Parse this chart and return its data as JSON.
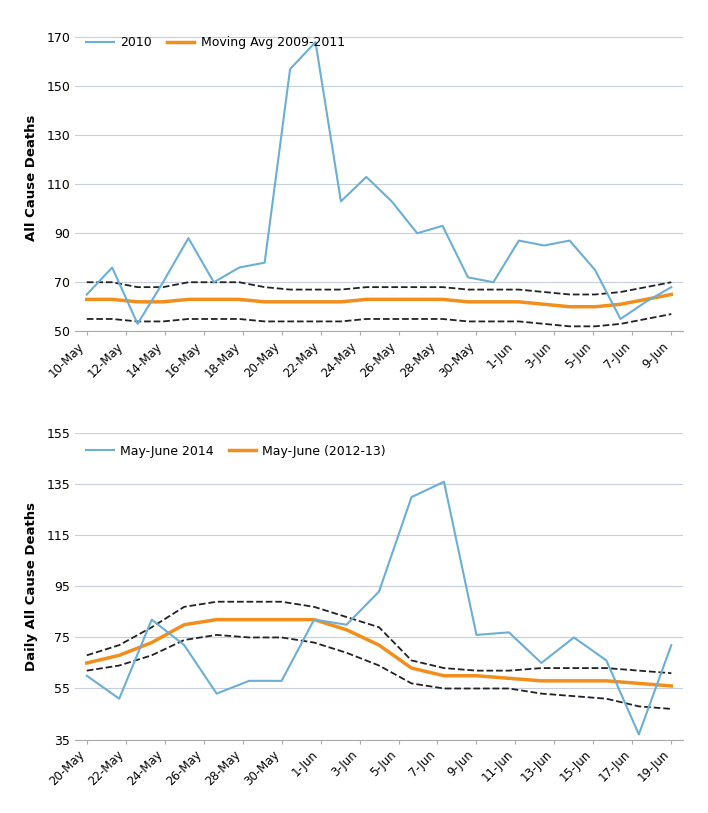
{
  "chart1": {
    "ylabel": "All Cause Deaths",
    "xlabels": [
      "10-May",
      "12-May",
      "14-May",
      "16-May",
      "18-May",
      "20-May",
      "22-May",
      "24-May",
      "26-May",
      "28-May",
      "30-May",
      "1-Jun",
      "3-Jun",
      "5-Jun",
      "7-Jun",
      "9-Jun"
    ],
    "blue_line": [
      65,
      76,
      53,
      70,
      88,
      70,
      76,
      78,
      157,
      168,
      103,
      113,
      103,
      90,
      93,
      72,
      70,
      87,
      85,
      87,
      75,
      55,
      62,
      68
    ],
    "orange_line": [
      63,
      63,
      62,
      62,
      63,
      63,
      63,
      62,
      62,
      62,
      62,
      63,
      63,
      63,
      63,
      62,
      62,
      62,
      61,
      60,
      60,
      61,
      63,
      65
    ],
    "upper_ci": [
      70,
      70,
      68,
      68,
      70,
      70,
      70,
      68,
      67,
      67,
      67,
      68,
      68,
      68,
      68,
      67,
      67,
      67,
      66,
      65,
      65,
      66,
      68,
      70
    ],
    "lower_ci": [
      55,
      55,
      54,
      54,
      55,
      55,
      55,
      54,
      54,
      54,
      54,
      55,
      55,
      55,
      55,
      54,
      54,
      54,
      53,
      52,
      52,
      53,
      55,
      57
    ],
    "ylim": [
      50,
      175
    ],
    "yticks": [
      50,
      70,
      90,
      110,
      130,
      150,
      170
    ],
    "legend1": "2010",
    "legend2": "Moving Avg 2009-2011"
  },
  "chart2": {
    "ylabel": "Daily All Cause Deaths",
    "xlabels": [
      "20-May",
      "22-May",
      "24-May",
      "26-May",
      "28-May",
      "30-May",
      "1-Jun",
      "3-Jun",
      "5-Jun",
      "7-Jun",
      "9-Jun",
      "11-Jun",
      "13-Jun",
      "15-Jun",
      "17-Jun",
      "19-Jun"
    ],
    "blue_line": [
      60,
      51,
      82,
      72,
      53,
      58,
      58,
      82,
      80,
      93,
      130,
      136,
      76,
      77,
      65,
      75,
      66,
      37,
      72
    ],
    "orange_line": [
      65,
      68,
      73,
      80,
      82,
      82,
      82,
      82,
      78,
      72,
      63,
      60,
      60,
      59,
      58,
      58,
      58,
      57,
      56
    ],
    "upper_ci": [
      68,
      72,
      79,
      87,
      89,
      89,
      89,
      87,
      83,
      79,
      66,
      63,
      62,
      62,
      63,
      63,
      63,
      62,
      61
    ],
    "lower_ci": [
      62,
      64,
      68,
      74,
      76,
      75,
      75,
      73,
      69,
      64,
      57,
      55,
      55,
      55,
      53,
      52,
      51,
      48,
      47
    ],
    "ylim": [
      35,
      155
    ],
    "yticks": [
      35,
      55,
      75,
      95,
      115,
      135,
      155
    ],
    "legend1": "May-June 2014",
    "legend2": "May-June (2012-13)"
  },
  "blue_color": "#6baed6",
  "orange_color": "#f28e1c",
  "ci_color": "#222222",
  "bg_color": "#ffffff",
  "bottom_color": "#c8d4e0"
}
